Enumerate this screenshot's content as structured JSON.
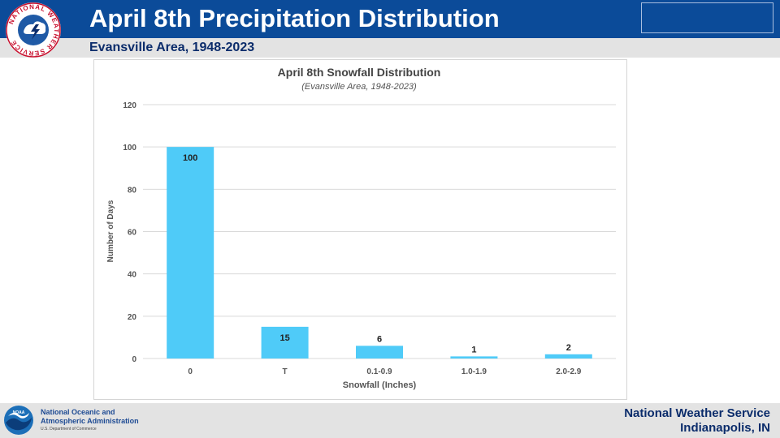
{
  "header": {
    "title": "April 8th Precipitation Distribution",
    "subtitle": "Evansville Area, 1948-2023",
    "logo_text": "NATIONAL WEATHER SERVICE"
  },
  "footer": {
    "noaa_name": "National Oceanic and\nAtmospheric Administration",
    "noaa_dept": "U.S. Department of Commerce",
    "noaa_logo_text": "NOAA",
    "nws_line1": "National Weather Service",
    "nws_line2": "Indianapolis, IN"
  },
  "colors": {
    "header_blue": "#0b4b99",
    "subbar_gray": "#e3e3e3",
    "bar": "#4fcbf8",
    "footer_text": "#0b2c6b"
  },
  "chart_data": {
    "type": "bar",
    "title": "April 8th Snowfall Distribution",
    "subtitle": "(Evansville Area, 1948-2023)",
    "xlabel": "Snowfall (Inches)",
    "ylabel": "Number of Days",
    "categories": [
      "0",
      "T",
      "0.1-0.9",
      "1.0-1.9",
      "2.0-2.9"
    ],
    "values": [
      100,
      15,
      6,
      1,
      2
    ],
    "data_labels": [
      "100",
      "15",
      "6",
      "1",
      "2"
    ],
    "yticks": [
      "0",
      "20",
      "40",
      "60",
      "80",
      "100",
      "120"
    ],
    "ylim": [
      0,
      120
    ],
    "grid": true,
    "legend": "none"
  }
}
